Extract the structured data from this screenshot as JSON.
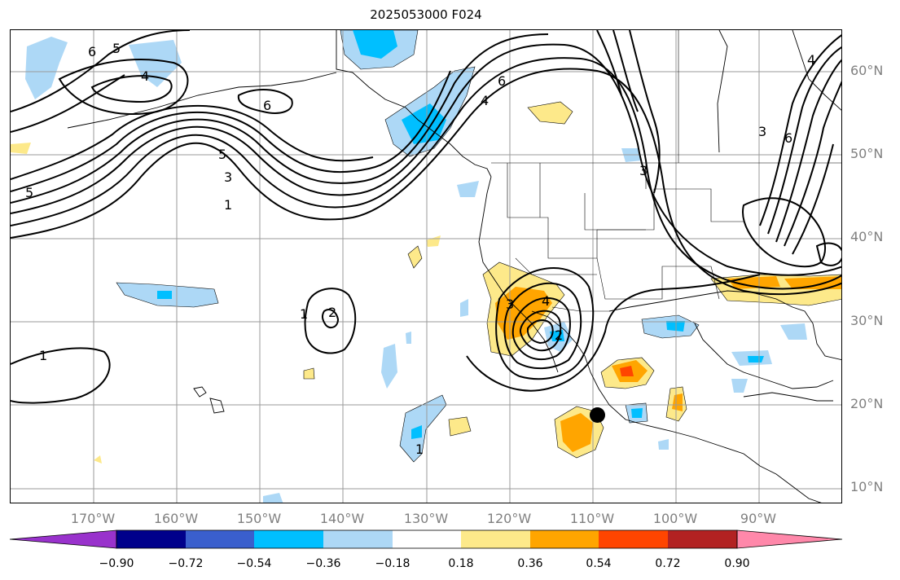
{
  "title": "2025053000 F024",
  "lat_labels": [
    "60°N",
    "50°N",
    "40°N",
    "30°N",
    "20°N",
    "10°N"
  ],
  "lon_labels": [
    "170°W",
    "160°W",
    "150°W",
    "140°W",
    "130°W",
    "120°W",
    "110°W",
    "100°W",
    "90°W"
  ],
  "colorbar": {
    "ticks": [
      "−0.90",
      "−0.72",
      "−0.54",
      "−0.36",
      "−0.18",
      "0.18",
      "0.36",
      "0.54",
      "0.72",
      "0.90"
    ],
    "colors": [
      "#9932cc",
      "#00008b",
      "#3a5fcd",
      "#00bfff",
      "#add8f6",
      "#ffffff",
      "#fde98a",
      "#ffa500",
      "#ff4500",
      "#b22222",
      "#ff88aa"
    ]
  },
  "contour_labels": [
    "6",
    "5",
    "4",
    "6",
    "5",
    "3",
    "1",
    "5",
    "6",
    "4",
    "3",
    "2",
    "1",
    "1",
    "3",
    "4",
    "2",
    "1",
    "6",
    "4",
    "3"
  ]
}
